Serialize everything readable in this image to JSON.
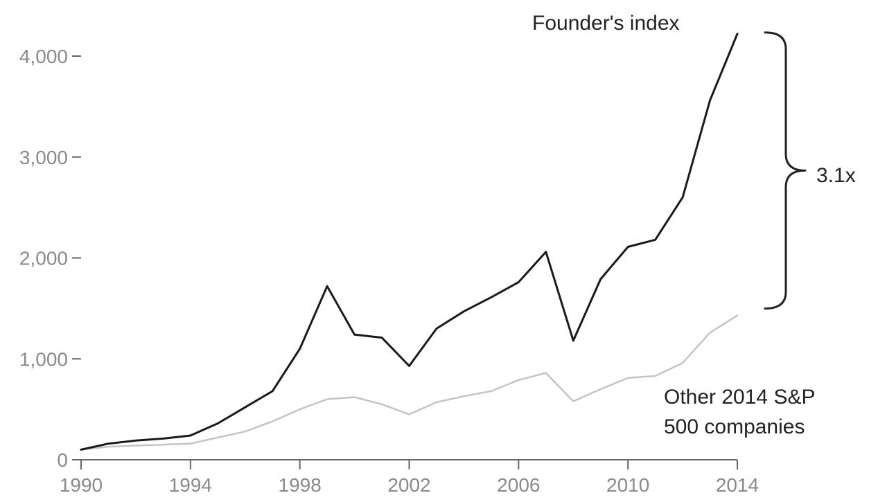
{
  "chart_data": {
    "type": "line",
    "title": "",
    "xlabel": "",
    "ylabel": "",
    "xlim": [
      1990,
      2014
    ],
    "ylim": [
      0,
      4200
    ],
    "x": [
      1990,
      1991,
      1992,
      1993,
      1994,
      1995,
      1996,
      1997,
      1998,
      1999,
      2000,
      2001,
      2002,
      2003,
      2004,
      2005,
      2006,
      2007,
      2008,
      2009,
      2010,
      2011,
      2012,
      2013,
      2014
    ],
    "x_ticks": [
      "1990",
      "1994",
      "1998",
      "2002",
      "2006",
      "2010",
      "2014"
    ],
    "y_ticks": [
      "0",
      "1,000",
      "2,000",
      "3,000",
      "4,000"
    ],
    "grid": false,
    "series": [
      {
        "name": "Founder's index",
        "color": "#1a1a1a",
        "values": [
          100,
          160,
          190,
          210,
          240,
          360,
          520,
          680,
          1100,
          1720,
          1240,
          1210,
          930,
          1300,
          1470,
          1610,
          1760,
          2060,
          1180,
          1790,
          2110,
          2180,
          2600,
          3560,
          4220
        ]
      },
      {
        "name": "Other 2014 S&P 500 companies",
        "color": "#c4c4c4",
        "values": [
          100,
          130,
          140,
          150,
          160,
          220,
          280,
          380,
          500,
          600,
          620,
          550,
          450,
          570,
          630,
          680,
          790,
          860,
          580,
          700,
          810,
          830,
          960,
          1260,
          1430
        ]
      }
    ],
    "labels": {
      "founders": "Founder's index",
      "other_line1": "Other 2014 S&P",
      "other_line2": "500 companies",
      "multiplier": "3.1x"
    }
  }
}
